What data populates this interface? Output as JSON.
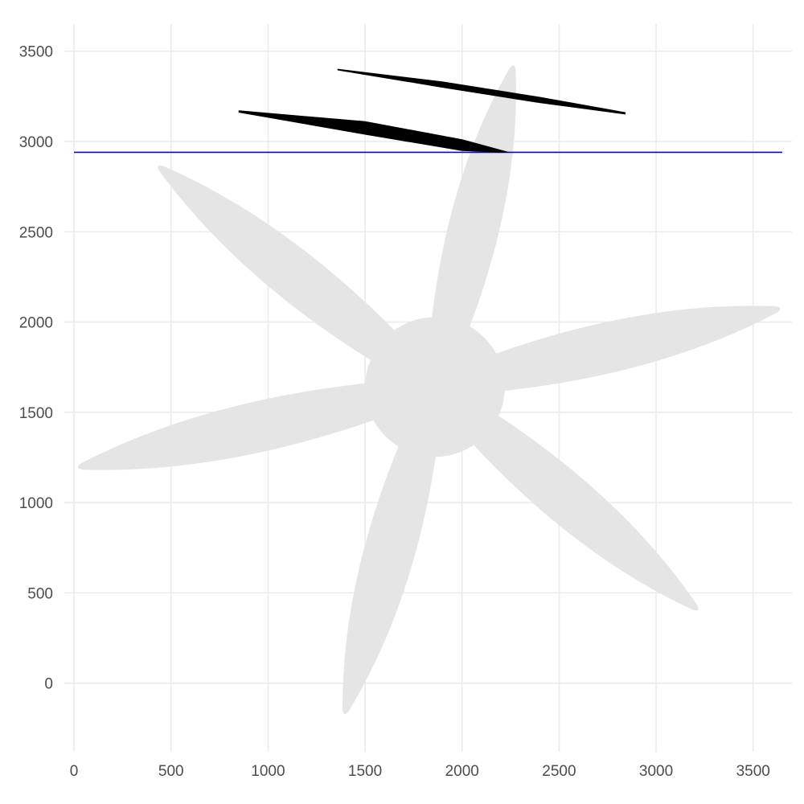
{
  "chart_data": {
    "type": "line",
    "title": "",
    "xlabel": "",
    "ylabel": "",
    "xlim": [
      -50,
      3700
    ],
    "ylim": [
      -380,
      3650
    ],
    "x_ticks": [
      0,
      500,
      1000,
      1500,
      2000,
      2500,
      3000,
      3500
    ],
    "y_ticks": [
      0,
      500,
      1000,
      1500,
      2000,
      2500,
      3000,
      3500
    ],
    "x_tick_labels": [
      "0",
      "500",
      "1000",
      "1500",
      "2000",
      "2500",
      "3000",
      "3500"
    ],
    "y_tick_labels": [
      "0",
      "500",
      "1000",
      "1500",
      "2000",
      "2500",
      "3000",
      "3500"
    ],
    "grid": true,
    "legend": "none",
    "series": [
      {
        "kind": "hline",
        "color": "#0000ff",
        "y": 2940,
        "x": [
          0,
          3650
        ]
      },
      {
        "kind": "wedge",
        "color": "#000000",
        "points": [
          [
            850,
            3170
          ],
          [
            1500,
            3110
          ],
          [
            2000,
            3010
          ],
          [
            2240,
            2940
          ],
          [
            2000,
            2950
          ],
          [
            1500,
            3040
          ],
          [
            850,
            3162
          ]
        ]
      },
      {
        "kind": "wedge",
        "color": "#000000",
        "points": [
          [
            1360,
            3400
          ],
          [
            1900,
            3330
          ],
          [
            2400,
            3245
          ],
          [
            2840,
            3160
          ],
          [
            2840,
            3152
          ],
          [
            2400,
            3215
          ],
          [
            1900,
            3300
          ],
          [
            1360,
            3396
          ]
        ]
      }
    ],
    "background_shape": {
      "name": "propeller",
      "color": "#e5e5e5",
      "hub": {
        "cx": 1860,
        "cy": 1640,
        "r": 360
      },
      "blades": [
        {
          "tip": [
            2260,
            3400
          ]
        },
        {
          "tip": [
            3620,
            2070
          ]
        },
        {
          "tip": [
            3200,
            420
          ]
        },
        {
          "tip": [
            1400,
            -150
          ]
        },
        {
          "tip": [
            40,
            1200
          ]
        },
        {
          "tip": [
            450,
            2850
          ]
        }
      ]
    }
  }
}
